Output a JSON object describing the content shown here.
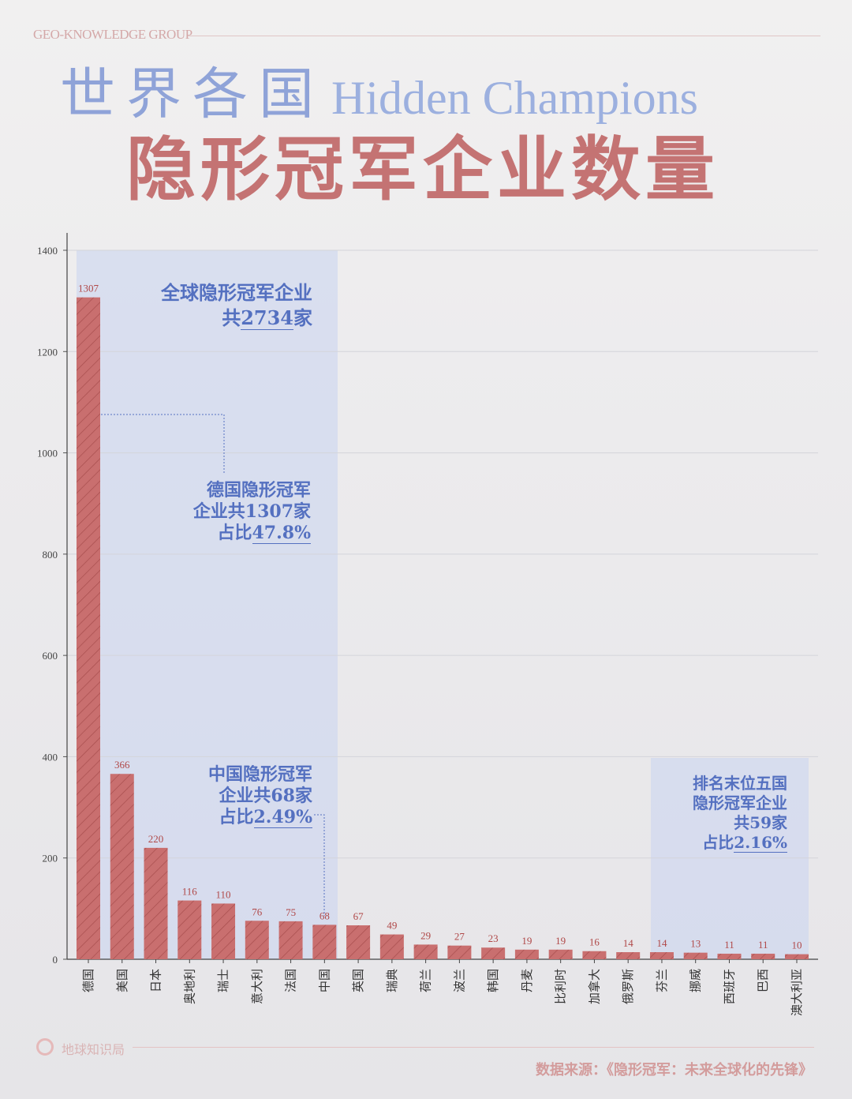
{
  "brand": "GEO-KNOWLEDGE GROUP",
  "title": {
    "line1_cn": "世界各国",
    "line1_en": "Hidden Champions",
    "line2": "隐形冠军企业数量"
  },
  "annotations": {
    "global": {
      "l1": "全球隐形冠军企业",
      "l2a": "共",
      "l2b": "2734",
      "l2c": "家"
    },
    "germany": {
      "l1": "德国隐形冠军",
      "l2": "企业共1307家",
      "l3a": "占比",
      "l3b": "47.8%"
    },
    "china": {
      "l1": "中国隐形冠军",
      "l2": "企业共68家",
      "l3a": "占比",
      "l3b": "2.49%"
    },
    "bottom5": {
      "l1": "排名末位五国",
      "l2": "隐形冠军企业",
      "l3": "共59家",
      "l4a": "占比",
      "l4b": "2.16%"
    }
  },
  "footer": {
    "name": "地球知识局",
    "source": "数据来源：《隐形冠军：未来全球化的先锋》"
  },
  "colors": {
    "bar": "#c96f6f",
    "highlight": "#c9d3f0",
    "annotation": "#5470c0"
  },
  "chart_data": {
    "type": "bar",
    "categories": [
      "德国",
      "美国",
      "日本",
      "奥地利",
      "瑞士",
      "意大利",
      "法国",
      "中国",
      "英国",
      "瑞典",
      "荷兰",
      "波兰",
      "韩国",
      "丹麦",
      "比利时",
      "加拿大",
      "俄罗斯",
      "芬兰",
      "挪威",
      "西班牙",
      "巴西",
      "澳大利亚"
    ],
    "values": [
      1307,
      366,
      220,
      116,
      110,
      76,
      75,
      68,
      67,
      49,
      29,
      27,
      23,
      19,
      19,
      16,
      14,
      14,
      13,
      11,
      11,
      10
    ],
    "ylim": [
      0,
      1400
    ],
    "yticks": [
      0,
      200,
      400,
      600,
      800,
      1000,
      1200,
      1400
    ],
    "grid": true,
    "bar_pattern": "hatched"
  }
}
